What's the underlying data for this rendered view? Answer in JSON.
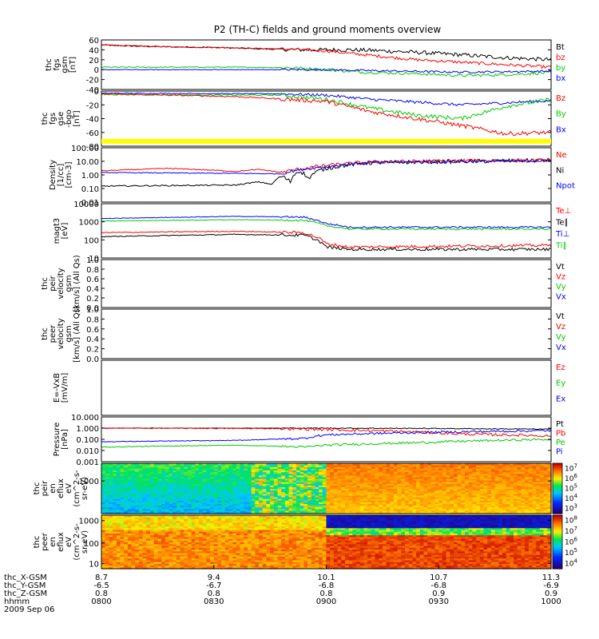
{
  "title": "P2 (TH-C) fields and ground moments overview",
  "chart_data": [
    {
      "type": "line",
      "ylabel": [
        "thc",
        "fgs",
        "gsm",
        "[nT]"
      ],
      "ylim": [
        -40,
        60
      ],
      "ticks": [
        "60",
        "40",
        "20",
        "0",
        "-20",
        "-40"
      ],
      "tick_values": [
        60,
        40,
        20,
        0,
        -20,
        -40
      ],
      "legend": [
        {
          "label": "Bt",
          "color": "#000000"
        },
        {
          "label": "bz",
          "color": "#ff0000"
        },
        {
          "label": "by",
          "color": "#00cc00"
        },
        {
          "label": "bx",
          "color": "#0000ff"
        }
      ],
      "series": [
        {
          "name": "Bt",
          "color": "#000000",
          "noise": 4,
          "values": [
            [
              0,
              50
            ],
            [
              0.05,
              48
            ],
            [
              0.15,
              46
            ],
            [
              0.25,
              45
            ],
            [
              0.35,
              42
            ],
            [
              0.45,
              40
            ],
            [
              0.5,
              40
            ],
            [
              0.55,
              40
            ],
            [
              0.6,
              39
            ],
            [
              0.7,
              35
            ],
            [
              0.8,
              30
            ],
            [
              0.9,
              24
            ],
            [
              1,
              20
            ]
          ]
        },
        {
          "name": "bz",
          "color": "#ff0000",
          "noise": 3,
          "values": [
            [
              0,
              50
            ],
            [
              0.15,
              46
            ],
            [
              0.3,
              44
            ],
            [
              0.4,
              42
            ],
            [
              0.45,
              40
            ],
            [
              0.5,
              38
            ],
            [
              0.55,
              33
            ],
            [
              0.62,
              27
            ],
            [
              0.7,
              20
            ],
            [
              0.8,
              15
            ],
            [
              0.9,
              10
            ],
            [
              1,
              5
            ]
          ]
        },
        {
          "name": "by",
          "color": "#00cc00",
          "noise": 3,
          "values": [
            [
              0,
              5
            ],
            [
              0.3,
              5
            ],
            [
              0.42,
              4
            ],
            [
              0.5,
              0
            ],
            [
              0.58,
              -5
            ],
            [
              0.7,
              -8
            ],
            [
              0.8,
              -12
            ],
            [
              0.9,
              -10
            ],
            [
              1,
              -6
            ]
          ]
        },
        {
          "name": "bx",
          "color": "#0000ff",
          "noise": 2,
          "values": [
            [
              0,
              0
            ],
            [
              0.5,
              0
            ],
            [
              0.6,
              -2
            ],
            [
              0.8,
              -5
            ],
            [
              1,
              -3
            ]
          ]
        }
      ]
    },
    {
      "type": "line",
      "ylabel": [
        "thc",
        "fgs",
        "gse",
        "-bgo",
        "[nT]"
      ],
      "ylim": [
        -80,
        0
      ],
      "ticks": [
        "0",
        "-20",
        "-40",
        "-60",
        "-80"
      ],
      "tick_values": [
        0,
        -20,
        -40,
        -60,
        -80
      ],
      "legend": [
        {
          "label": "Bz",
          "color": "#ff0000"
        },
        {
          "label": "By",
          "color": "#00cc00"
        },
        {
          "label": "Bx",
          "color": "#0000ff"
        }
      ],
      "series": [
        {
          "name": "Bx",
          "color": "#0000ff",
          "noise": 2,
          "values": [
            [
              0,
              -3
            ],
            [
              0.4,
              -4
            ],
            [
              0.5,
              -6
            ],
            [
              0.6,
              -12
            ],
            [
              0.8,
              -20
            ],
            [
              1,
              -14
            ]
          ]
        },
        {
          "name": "By",
          "color": "#00cc00",
          "noise": 3,
          "values": [
            [
              0,
              -5
            ],
            [
              0.4,
              -6
            ],
            [
              0.5,
              -12
            ],
            [
              0.6,
              -25
            ],
            [
              0.7,
              -35
            ],
            [
              0.8,
              -40
            ],
            [
              0.9,
              -22
            ],
            [
              1,
              -12
            ]
          ]
        },
        {
          "name": "Bz",
          "color": "#ff0000",
          "noise": 3,
          "values": [
            [
              0,
              -4
            ],
            [
              0.3,
              -8
            ],
            [
              0.5,
              -15
            ],
            [
              0.6,
              -30
            ],
            [
              0.7,
              -40
            ],
            [
              0.8,
              -50
            ],
            [
              0.9,
              -62
            ],
            [
              1,
              -60
            ]
          ]
        }
      ]
    },
    {
      "type": "line",
      "ylabel": [
        "Density",
        "[1/cc]",
        "[cm-3]"
      ],
      "scale": "log",
      "ylim": [
        0.01,
        100
      ],
      "ticks": [
        "100.00",
        "10.00",
        "1.00",
        "0.10",
        "0.01"
      ],
      "tick_values": [
        100,
        10,
        1,
        0.1,
        0.01
      ],
      "legend": [
        {
          "label": "Ne",
          "color": "#ff0000"
        },
        {
          "label": "Ni",
          "color": "#000000"
        },
        {
          "label": "Npot",
          "color": "#0000ff"
        }
      ],
      "series": [
        {
          "name": "Ni",
          "color": "#000000",
          "noise": 0.15,
          "values": [
            [
              0,
              0.15
            ],
            [
              0.3,
              0.18
            ],
            [
              0.35,
              0.3
            ],
            [
              0.38,
              0.2
            ],
            [
              0.4,
              0.8
            ],
            [
              0.42,
              0.3
            ],
            [
              0.44,
              2
            ],
            [
              0.46,
              0.5
            ],
            [
              0.5,
              3
            ],
            [
              0.6,
              8
            ],
            [
              0.8,
              10
            ],
            [
              1,
              12
            ]
          ]
        },
        {
          "name": "Ne",
          "color": "#ff0000",
          "noise": 0.12,
          "values": [
            [
              0,
              2
            ],
            [
              0.15,
              3
            ],
            [
              0.3,
              1.8
            ],
            [
              0.35,
              2.5
            ],
            [
              0.4,
              1.5
            ],
            [
              0.45,
              3
            ],
            [
              0.5,
              5
            ],
            [
              0.6,
              9
            ],
            [
              0.8,
              11
            ],
            [
              1,
              12
            ]
          ]
        },
        {
          "name": "Npot",
          "color": "#0000ff",
          "noise": 0.1,
          "values": [
            [
              0,
              1.5
            ],
            [
              0.3,
              1.3
            ],
            [
              0.4,
              1.2
            ],
            [
              0.5,
              4
            ],
            [
              0.6,
              8
            ],
            [
              1,
              11
            ]
          ]
        }
      ],
      "band": {
        "value": 300,
        "color": "#ffff00"
      }
    },
    {
      "type": "line",
      "ylabel": [
        "magt3",
        "[eV]"
      ],
      "scale": "log",
      "ylim": [
        10,
        10000
      ],
      "ticks": [
        "10000",
        "1000",
        "100",
        "10"
      ],
      "tick_values": [
        10000,
        1000,
        100,
        10
      ],
      "legend": [
        {
          "label": "Te⊥",
          "color": "#ff0000"
        },
        {
          "label": "Te∥",
          "color": "#000000"
        },
        {
          "label": "Ti⊥",
          "color": "#0000ff"
        },
        {
          "label": "Ti∥",
          "color": "#00cc00"
        }
      ],
      "series": [
        {
          "name": "Ti⊥",
          "color": "#0000ff",
          "noise": 0.05,
          "values": [
            [
              0,
              1500
            ],
            [
              0.3,
              2000
            ],
            [
              0.45,
              1800
            ],
            [
              0.5,
              800
            ],
            [
              0.55,
              500
            ],
            [
              1,
              500
            ]
          ]
        },
        {
          "name": "Ti∥",
          "color": "#00cc00",
          "noise": 0.05,
          "values": [
            [
              0,
              1100
            ],
            [
              0.3,
              1300
            ],
            [
              0.45,
              1200
            ],
            [
              0.5,
              600
            ],
            [
              0.55,
              400
            ],
            [
              1,
              400
            ]
          ]
        },
        {
          "name": "Te⊥",
          "color": "#ff0000",
          "noise": 0.08,
          "values": [
            [
              0,
              250
            ],
            [
              0.3,
              300
            ],
            [
              0.45,
              250
            ],
            [
              0.5,
              60
            ],
            [
              0.55,
              40
            ],
            [
              1,
              50
            ]
          ]
        },
        {
          "name": "Te∥",
          "color": "#000000",
          "noise": 0.08,
          "values": [
            [
              0,
              150
            ],
            [
              0.3,
              200
            ],
            [
              0.45,
              180
            ],
            [
              0.5,
              40
            ],
            [
              0.55,
              30
            ],
            [
              1,
              30
            ]
          ]
        }
      ]
    },
    {
      "type": "line",
      "ylabel": [
        "thc",
        "peir",
        "velocity",
        "gsm",
        "[km/s] (All Qs)"
      ],
      "ylim": [
        0,
        1
      ],
      "ticks": [
        "1.0",
        "0.8",
        "0.6",
        "0.4",
        "0.2",
        "0.0"
      ],
      "tick_values": [
        1,
        0.8,
        0.6,
        0.4,
        0.2,
        0
      ],
      "legend": [
        {
          "label": "Vt",
          "color": "#000000"
        },
        {
          "label": "Vz",
          "color": "#ff0000"
        },
        {
          "label": "Vy",
          "color": "#00cc00"
        },
        {
          "label": "Vx",
          "color": "#0000ff"
        }
      ],
      "series": []
    },
    {
      "type": "line",
      "ylabel": [
        "thc",
        "peer",
        "velocity",
        "gsm",
        "[km/s] (All Qs)"
      ],
      "ylim": [
        0,
        1
      ],
      "ticks": [
        "1.0",
        "0.8",
        "0.6",
        "0.4",
        "0.2",
        "0.0"
      ],
      "tick_values": [
        1,
        0.8,
        0.6,
        0.4,
        0.2,
        0
      ],
      "legend": [
        {
          "label": "Vt",
          "color": "#000000"
        },
        {
          "label": "Vz",
          "color": "#ff0000"
        },
        {
          "label": "Vy",
          "color": "#00cc00"
        },
        {
          "label": "Vx",
          "color": "#0000ff"
        }
      ],
      "series": []
    },
    {
      "type": "line",
      "ylabel": [
        "E=-VxB",
        "[mV/m]"
      ],
      "ylim": [
        0,
        1
      ],
      "ticks": [],
      "tick_values": [],
      "legend": [
        {
          "label": "Ez",
          "color": "#ff0000"
        },
        {
          "label": "Ey",
          "color": "#00cc00"
        },
        {
          "label": "Ex",
          "color": "#0000ff"
        }
      ],
      "series": []
    },
    {
      "type": "line",
      "ylabel": [
        "Pressure",
        "[nPa]"
      ],
      "scale": "log",
      "ylim": [
        0.001,
        10
      ],
      "ticks": [
        "10.000",
        "1.000",
        "0.100",
        "0.010",
        "0.001"
      ],
      "tick_values": [
        10,
        1,
        0.1,
        0.01,
        0.001
      ],
      "legend": [
        {
          "label": "Pt",
          "color": "#000000"
        },
        {
          "label": "Pb",
          "color": "#ff0000"
        },
        {
          "label": "Pe",
          "color": "#00cc00"
        },
        {
          "label": "Pi",
          "color": "#0000ff"
        }
      ],
      "series": [
        {
          "name": "Pt",
          "color": "#000000",
          "noise": 0.04,
          "values": [
            [
              0,
              1.0
            ],
            [
              0.5,
              1.0
            ],
            [
              0.7,
              0.95
            ],
            [
              1,
              0.8
            ]
          ]
        },
        {
          "name": "Pb",
          "color": "#ff0000",
          "noise": 0.12,
          "values": [
            [
              0,
              1.0
            ],
            [
              0.4,
              0.9
            ],
            [
              0.6,
              0.6
            ],
            [
              0.8,
              0.3
            ],
            [
              1,
              0.2
            ]
          ]
        },
        {
          "name": "Pi",
          "color": "#0000ff",
          "noise": 0.1,
          "values": [
            [
              0,
              0.06
            ],
            [
              0.3,
              0.08
            ],
            [
              0.45,
              0.12
            ],
            [
              0.5,
              0.25
            ],
            [
              0.7,
              0.4
            ],
            [
              1,
              0.6
            ]
          ]
        },
        {
          "name": "Pe",
          "color": "#00cc00",
          "noise": 0.1,
          "values": [
            [
              0,
              0.02
            ],
            [
              0.3,
              0.03
            ],
            [
              0.45,
              0.02
            ],
            [
              0.5,
              0.03
            ],
            [
              0.7,
              0.05
            ],
            [
              1,
              0.1
            ]
          ]
        }
      ]
    },
    {
      "type": "heatmap",
      "ylabel": [
        "thc",
        "peir",
        "en",
        "eflux",
        "eV",
        "(cm^2-s-",
        "sr-eV)"
      ],
      "ticks": [
        "1000"
      ],
      "tick_values": [
        0.65
      ],
      "colorbar": [
        "10^7",
        "10^6",
        "10^5",
        "10^4",
        "10^3"
      ],
      "colorbar_values": [
        7,
        6,
        5,
        4,
        3
      ],
      "levels": {
        "rows": 30,
        "cols": 120,
        "base": [
          0.55,
          0.62,
          0.7,
          0.78,
          0.85
        ],
        "transition": 0.5
      }
    },
    {
      "type": "heatmap",
      "ylabel": [
        "thc",
        "peer",
        "en",
        "eflux",
        "eV",
        "(cm^2-s-",
        "sr-eV)"
      ],
      "ticks": [
        "1000",
        "100",
        "10"
      ],
      "tick_values": [
        0.9,
        0.48,
        0.1
      ],
      "colorbar": [
        "10^8",
        "10^7",
        "10^6",
        "10^5",
        "10^4"
      ],
      "colorbar_values": [
        8,
        7,
        6,
        5,
        4
      ],
      "levels": {
        "rows": 30,
        "cols": 120,
        "base": [
          0.75,
          0.85,
          0.9,
          0.85,
          0.7
        ],
        "transition": 0.5
      }
    }
  ],
  "xaxis": {
    "rows": [
      {
        "label": "thc_X-GSM",
        "values": [
          "8.7",
          "9.4",
          "10.1",
          "10.7",
          "11.3"
        ]
      },
      {
        "label": "thc_Y-GSM",
        "values": [
          "-6.5",
          "-6.7",
          "-6.8",
          "-6.8",
          "-6.9"
        ]
      },
      {
        "label": "thc_Z-GSM",
        "values": [
          "0.8",
          "0.8",
          "0.8",
          "0.9",
          "0.9"
        ]
      },
      {
        "label": "hhmm",
        "values": [
          "0800",
          "0830",
          "0900",
          "0930",
          "1000"
        ]
      }
    ],
    "date": "2009 Sep 06"
  }
}
